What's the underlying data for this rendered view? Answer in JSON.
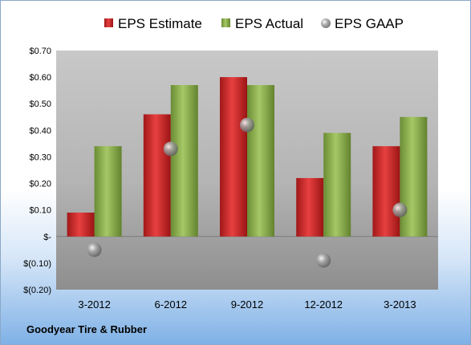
{
  "company": "Goodyear Tire & Rubber",
  "colors": {
    "estimate": "#d42a2a",
    "actual": "#8cb04c",
    "gaap": "#a8b0b8"
  },
  "chart_data": {
    "type": "bar",
    "categories": [
      "3-2012",
      "6-2012",
      "9-2012",
      "12-2012",
      "3-2013"
    ],
    "series": [
      {
        "name": "EPS Estimate",
        "kind": "bar",
        "values": [
          0.09,
          0.46,
          0.6,
          0.22,
          0.34
        ]
      },
      {
        "name": "EPS Actual",
        "kind": "bar",
        "values": [
          0.34,
          0.57,
          0.57,
          0.39,
          0.45
        ]
      },
      {
        "name": "EPS GAAP",
        "kind": "scatter",
        "values": [
          -0.05,
          0.33,
          0.42,
          -0.09,
          0.1
        ]
      }
    ],
    "ylim": [
      -0.2,
      0.7
    ],
    "yticks": [
      {
        "value": 0.7,
        "label": "$0.70"
      },
      {
        "value": 0.6,
        "label": "$0.60"
      },
      {
        "value": 0.5,
        "label": "$0.50"
      },
      {
        "value": 0.4,
        "label": "$0.40"
      },
      {
        "value": 0.3,
        "label": "$0.30"
      },
      {
        "value": 0.2,
        "label": "$0.20"
      },
      {
        "value": 0.1,
        "label": "$0.10"
      },
      {
        "value": 0.0,
        "label": "$-"
      },
      {
        "value": -0.1,
        "label": "$(0.10)"
      },
      {
        "value": -0.2,
        "label": "$(0.20)"
      }
    ],
    "legend_position": "top",
    "grid": false
  }
}
